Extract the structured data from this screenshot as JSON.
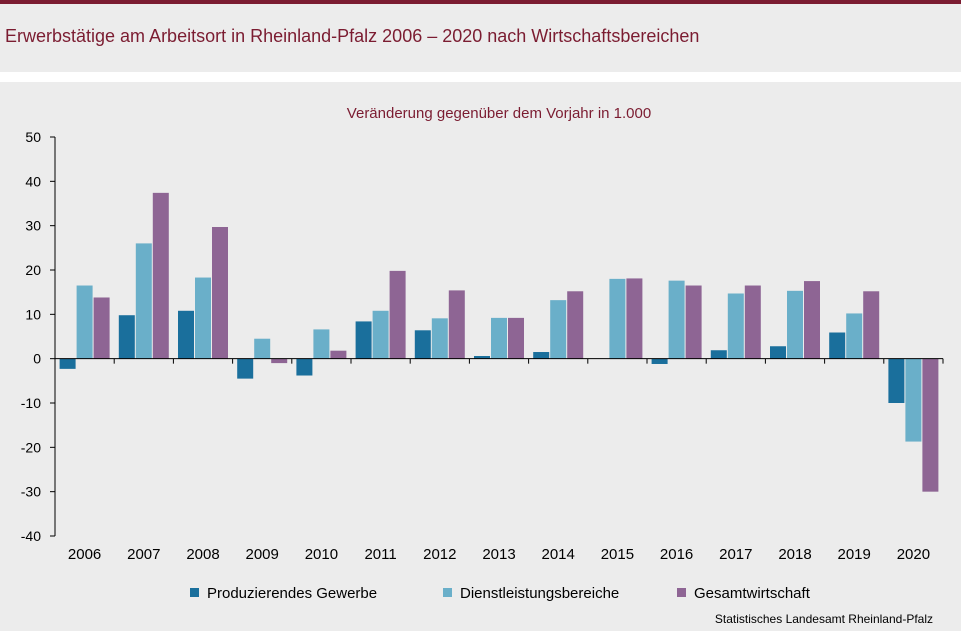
{
  "header": {
    "title": "Erwerbstätige am Arbeitsort in Rheinland-Pfalz 2006 – 2020 nach Wirtschaftsbereichen"
  },
  "footer": {
    "source": "Statistisches Landesamt Rheinland-Pfalz"
  },
  "colors": {
    "title": "#7b1c31",
    "panel": "#ececec",
    "series": [
      "#1a6f9c",
      "#6aafc9",
      "#8e6594"
    ]
  },
  "chart_data": {
    "type": "bar",
    "subtitle": "Veränderung gegenüber dem Vorjahr in 1.000",
    "categories": [
      "2006",
      "2007",
      "2008",
      "2009",
      "2010",
      "2011",
      "2012",
      "2013",
      "2014",
      "2015",
      "2016",
      "2017",
      "2018",
      "2019",
      "2020"
    ],
    "series": [
      {
        "name": "Produzierendes Gewerbe",
        "values": [
          -2.3,
          9.8,
          10.8,
          -4.5,
          -3.8,
          8.4,
          6.4,
          0.6,
          1.5,
          0,
          -1.2,
          1.9,
          2.8,
          5.9,
          -10
        ]
      },
      {
        "name": "Dienstleistungsbereiche",
        "values": [
          16.5,
          26,
          18.3,
          4.5,
          6.6,
          10.8,
          9.1,
          9.2,
          13.2,
          18,
          17.6,
          14.7,
          15.3,
          10.2,
          -18.7
        ]
      },
      {
        "name": "Gesamtwirtschaft",
        "values": [
          13.8,
          37.4,
          29.7,
          -1,
          1.8,
          19.8,
          15.4,
          9.2,
          15.2,
          18.1,
          16.5,
          16.5,
          17.5,
          15.2,
          -30
        ]
      }
    ],
    "yticks": [
      50,
      40,
      30,
      20,
      10,
      0,
      -10,
      -20,
      -30,
      -40
    ],
    "ylim": [
      -40,
      50
    ],
    "grid": false,
    "legend_position": "bottom"
  }
}
